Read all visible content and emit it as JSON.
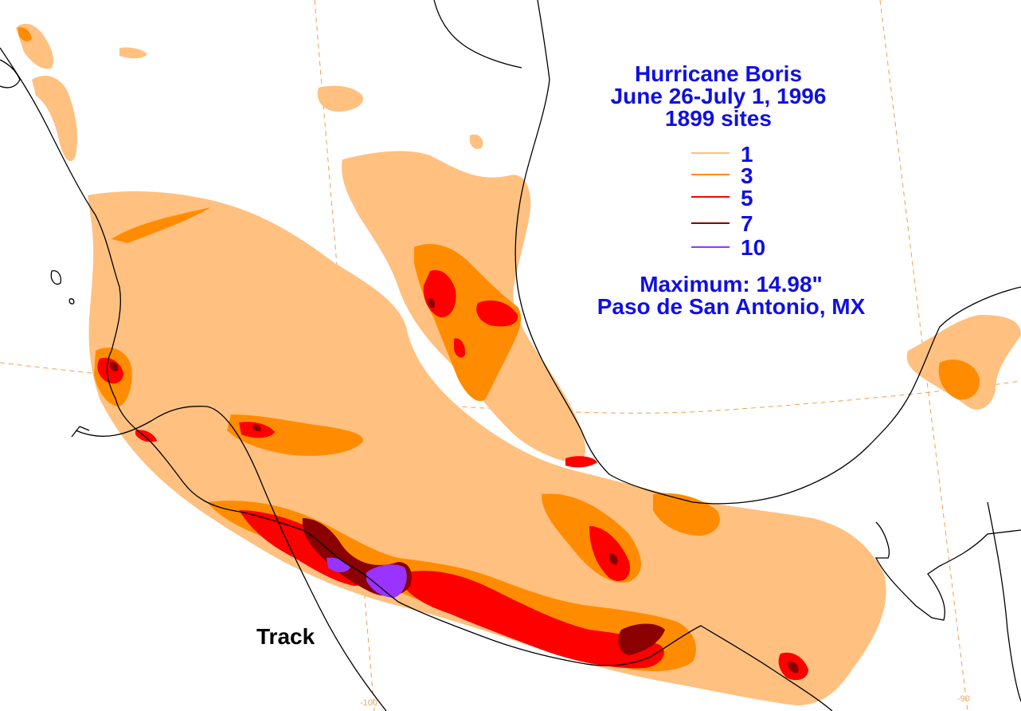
{
  "title": {
    "line1": "Hurricane Boris",
    "line2": "June 26-July 1, 1996",
    "line3": "1899 sites"
  },
  "legend": [
    {
      "label": "1",
      "color": "#ffc080"
    },
    {
      "label": "3",
      "color": "#ff8c00"
    },
    {
      "label": "5",
      "color": "#ff0000"
    },
    {
      "label": "7",
      "color": "#8b0000"
    },
    {
      "label": "10",
      "color": "#9933ff"
    }
  ],
  "maximum": {
    "label": "Maximum:  14.98\"",
    "location": "Paso de San Antonio, MX"
  },
  "track_label": "Track",
  "lon_labels": [
    "-100",
    "-90"
  ],
  "colors": {
    "band_1": "#ffc080",
    "band_3": "#ff8c00",
    "band_5": "#ff0000",
    "band_7": "#8b0000",
    "band_10": "#9933ff",
    "title_text": "#1010e0",
    "gridline": "#f0a050",
    "coastline": "#000000"
  }
}
